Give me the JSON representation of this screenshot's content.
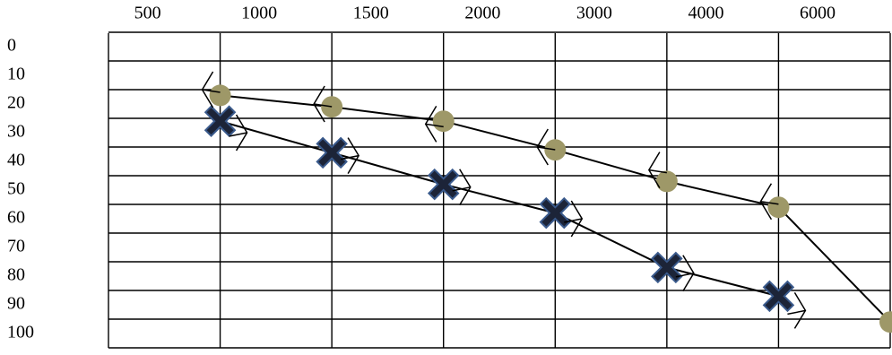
{
  "chart_data": {
    "type": "line",
    "categories": [
      "500",
      "1000",
      "1500",
      "2000",
      "3000",
      "4000",
      "6000"
    ],
    "yticks": [
      0,
      10,
      20,
      30,
      40,
      50,
      60,
      70,
      80,
      90,
      100
    ],
    "ylim": [
      0,
      100
    ],
    "y_inverted": true,
    "grid": true,
    "series": [
      {
        "marker": "circle",
        "color": "#9e9868",
        "line": true,
        "values": [
          17,
          21,
          26,
          36,
          47,
          56,
          96
        ]
      },
      {
        "marker": "cross",
        "color": "#1c2438",
        "line": true,
        "values": [
          26,
          37,
          48,
          58,
          77,
          87,
          null
        ]
      },
      {
        "marker": "left-bracket",
        "color": "#000000",
        "line": false,
        "values": [
          15,
          20,
          27,
          35,
          43,
          54,
          null
        ]
      },
      {
        "marker": "right-bracket",
        "color": "#000000",
        "line": false,
        "values": [
          30,
          38,
          49,
          60,
          79,
          92,
          null
        ]
      }
    ]
  }
}
